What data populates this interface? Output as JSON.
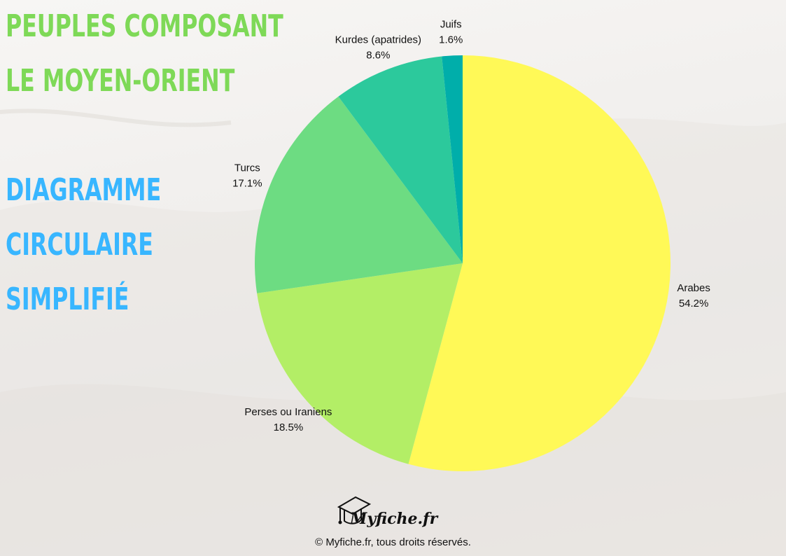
{
  "title_lines": [
    "PEUPLES COMPOSANT",
    "LE MOYEN-ORIENT"
  ],
  "subtitle_lines": [
    "DIAGRAMME",
    "CIRCULAIRE",
    "SIMPLIFIÉ"
  ],
  "colors": {
    "title": "#7ed957",
    "subtitle": "#38b6ff"
  },
  "chart_data": {
    "type": "pie",
    "slices": [
      {
        "label": "Arabes",
        "value": 54.2,
        "value_label": "54.2%",
        "color": "#fff957"
      },
      {
        "label": "Perses ou Iraniens",
        "value": 18.5,
        "value_label": "18.5%",
        "color": "#b3ee66"
      },
      {
        "label": "Turcs",
        "value": 17.1,
        "value_label": "17.1%",
        "color": "#6ddc82"
      },
      {
        "label": "Kurdes (apatrides)",
        "value": 8.6,
        "value_label": "8.6%",
        "color": "#2cc99c"
      },
      {
        "label": "Juifs",
        "value": 1.6,
        "value_label": "1.6%",
        "color": "#00aeaa"
      }
    ],
    "start_angle": "top",
    "direction": "clockwise"
  },
  "logo": {
    "text": "Myfiche.fr",
    "icon": "graduation-cap-icon"
  },
  "footer": {
    "copyright": "© Myfiche.fr, tous droits réservés."
  }
}
